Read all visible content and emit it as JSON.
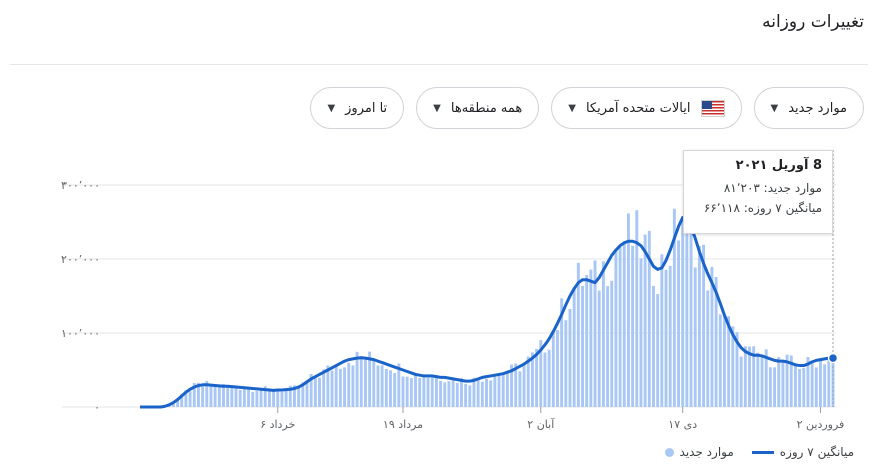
{
  "header": {
    "title": "تغییرات روزانه"
  },
  "filters": [
    {
      "label": "موارد جدید",
      "icon": "caret-down-icon"
    },
    {
      "label": "ایالات متحده آمریکا",
      "icon": "us-flag-icon"
    },
    {
      "label": "همه منطقه‌ها",
      "icon": "caret-down-icon"
    },
    {
      "label": "تا امروز",
      "icon": "caret-down-icon"
    }
  ],
  "tooltip": {
    "date": "8 آوریل ۲۰۲۱",
    "new_cases": "موارد جدید: ۸۱٬۲۰۳",
    "avg7": "میانگین ۷ روزه: ۶۶٬۱۱۸"
  },
  "legend": {
    "new_cases": "موارد جدید",
    "avg7": "میانگین ۷ روزه"
  },
  "colors": {
    "bars": "#a9c7f5",
    "line": "#1a63c9",
    "grid": "#e6e6e6"
  },
  "chart_data": {
    "type": "bar",
    "y_ticks": [
      "۰",
      "۱۰۰٬۰۰۰",
      "۲۰۰٬۰۰۰",
      "۳۰۰٬۰۰۰"
    ],
    "y_tick_values": [
      0,
      100000,
      200000,
      300000
    ],
    "ylim": [
      0,
      300000
    ],
    "x_tick_labels": [
      "خرداد ۶",
      "مرداد ۱۹",
      "آبان ۲",
      "دی ۱۷",
      "فروردین ۲"
    ],
    "x_tick_index": [
      33,
      63,
      96,
      130,
      163
    ],
    "series": [
      {
        "name": "میانگین ۷ روزه",
        "type": "line",
        "values": [
          0,
          0,
          0,
          0,
          0,
          0,
          1000,
          3000,
          6000,
          10000,
          15000,
          20000,
          24000,
          27000,
          29000,
          30000,
          30000,
          29500,
          29000,
          28500,
          28000,
          28000,
          27500,
          27000,
          26500,
          26000,
          25500,
          25000,
          24500,
          24000,
          23500,
          23000,
          22500,
          23000,
          23000,
          23500,
          24000,
          25000,
          27000,
          30000,
          34000,
          38000,
          41000,
          44000,
          47000,
          50000,
          53000,
          56000,
          59000,
          62000,
          64000,
          65000,
          66000,
          66500,
          66000,
          65000,
          64000,
          62000,
          60000,
          58000,
          56000,
          54000,
          52000,
          50000,
          48000,
          46000,
          44000,
          43000,
          42000,
          42000,
          42000,
          41000,
          40000,
          40000,
          39000,
          38000,
          37000,
          36000,
          35000,
          35000,
          36000,
          38000,
          40000,
          41000,
          42000,
          43000,
          44000,
          45000,
          47000,
          49000,
          52000,
          55000,
          58000,
          62000,
          66000,
          71000,
          77000,
          84000,
          92000,
          102000,
          113000,
          125000,
          138000,
          150000,
          160000,
          168000,
          172000,
          172000,
          170000,
          168000,
          175000,
          185000,
          195000,
          205000,
          212000,
          218000,
          222000,
          224000,
          224000,
          222000,
          218000,
          210000,
          200000,
          190000,
          186000,
          188000,
          198000,
          212000,
          228000,
          244000,
          256000,
          254000,
          244000,
          228000,
          210000,
          194000,
          180000,
          168000,
          155000,
          140000,
          124000,
          110000,
          98000,
          88000,
          80000,
          75000,
          72000,
          70000,
          70000,
          69000,
          67000,
          65000,
          63000,
          62000,
          62000,
          61000,
          59000,
          57000,
          56000,
          56000,
          58000,
          61000,
          63000,
          64000,
          65000,
          66000,
          66118
        ]
      }
    ]
  }
}
